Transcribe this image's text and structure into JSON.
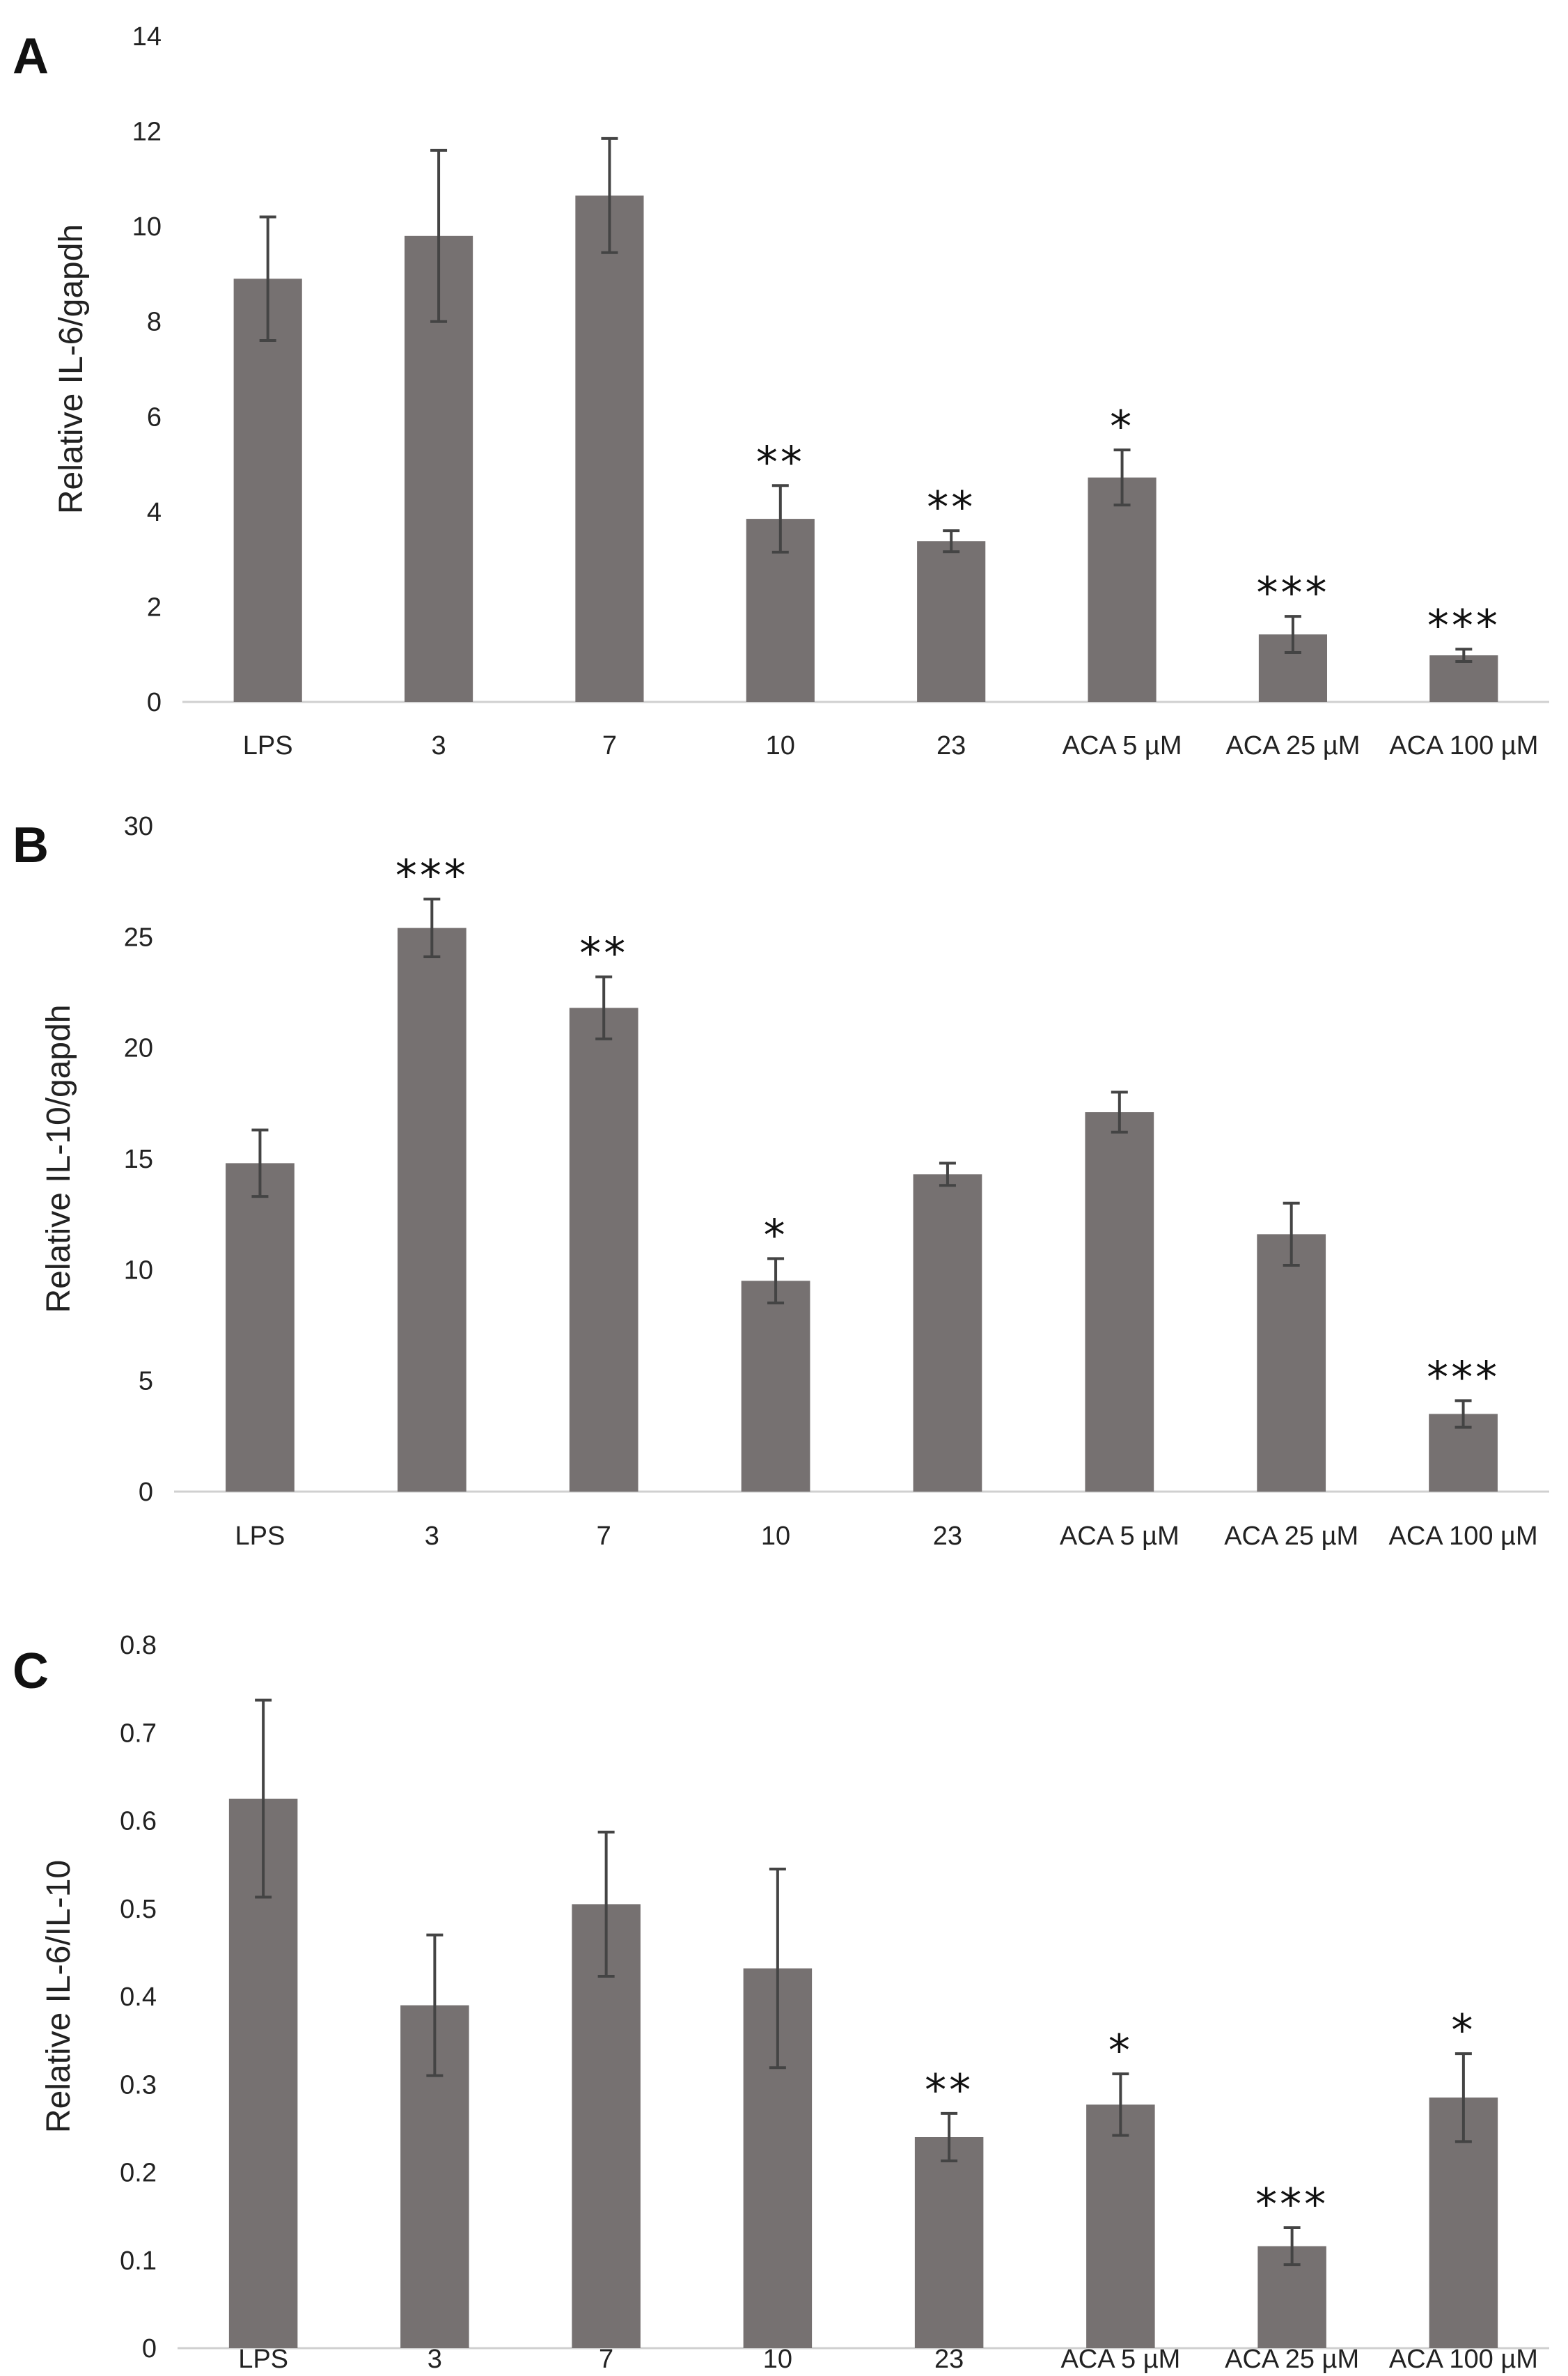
{
  "chart_data": [
    {
      "panel": "A",
      "type": "bar",
      "ylabel": "Relative IL-6/gapdh",
      "ylim": [
        0,
        14
      ],
      "yticks": [
        "0",
        "2",
        "4",
        "6",
        "8",
        "10",
        "12",
        "14"
      ],
      "categories": [
        "LPS",
        "3",
        "7",
        "10",
        "23",
        "ACA 5 µM",
        "ACA 25 µM",
        "ACA 100 µM"
      ],
      "values": [
        8.9,
        9.8,
        10.65,
        3.85,
        3.38,
        4.72,
        1.42,
        0.98
      ],
      "errors": [
        1.3,
        1.8,
        1.2,
        0.7,
        0.22,
        0.58,
        0.38,
        0.13
      ],
      "significance": [
        "",
        "",
        "",
        "**",
        "**",
        "*",
        "***",
        "***"
      ],
      "grid": false,
      "color": "#767171"
    },
    {
      "panel": "B",
      "type": "bar",
      "ylabel": "Relative IL-10/gapdh",
      "ylim": [
        0,
        30
      ],
      "yticks": [
        "0",
        "5",
        "10",
        "15",
        "20",
        "25",
        "30"
      ],
      "categories": [
        "LPS",
        "3",
        "7",
        "10",
        "23",
        "ACA 5 µM",
        "ACA 25 µM",
        "ACA 100 µM"
      ],
      "values": [
        14.8,
        25.4,
        21.8,
        9.5,
        14.3,
        17.1,
        11.6,
        3.5
      ],
      "errors": [
        1.5,
        1.3,
        1.4,
        1.0,
        0.5,
        0.9,
        1.4,
        0.6
      ],
      "significance": [
        "",
        "***",
        "**",
        "*",
        "",
        "",
        "",
        "***"
      ],
      "grid": false,
      "color": "#767171"
    },
    {
      "panel": "C",
      "type": "bar",
      "ylabel": "Relative IL-6/IL-10",
      "ylim": [
        0,
        0.8
      ],
      "yticks": [
        "0",
        "0.1",
        "0.2",
        "0.3",
        "0.4",
        "0.5",
        "0.6",
        "0.7",
        "0.8"
      ],
      "categories": [
        "LPS",
        "3",
        "7",
        "10",
        "23",
        "ACA 5 µM",
        "ACA 25 µM",
        "ACA 100 µM"
      ],
      "values": [
        0.625,
        0.39,
        0.505,
        0.432,
        0.24,
        0.277,
        0.116,
        0.285
      ],
      "errors": [
        0.112,
        0.08,
        0.082,
        0.113,
        0.027,
        0.035,
        0.021,
        0.05
      ],
      "significance": [
        "",
        "",
        "",
        "",
        "**",
        "*",
        "***",
        "*"
      ],
      "grid": false,
      "color": "#767171"
    }
  ]
}
